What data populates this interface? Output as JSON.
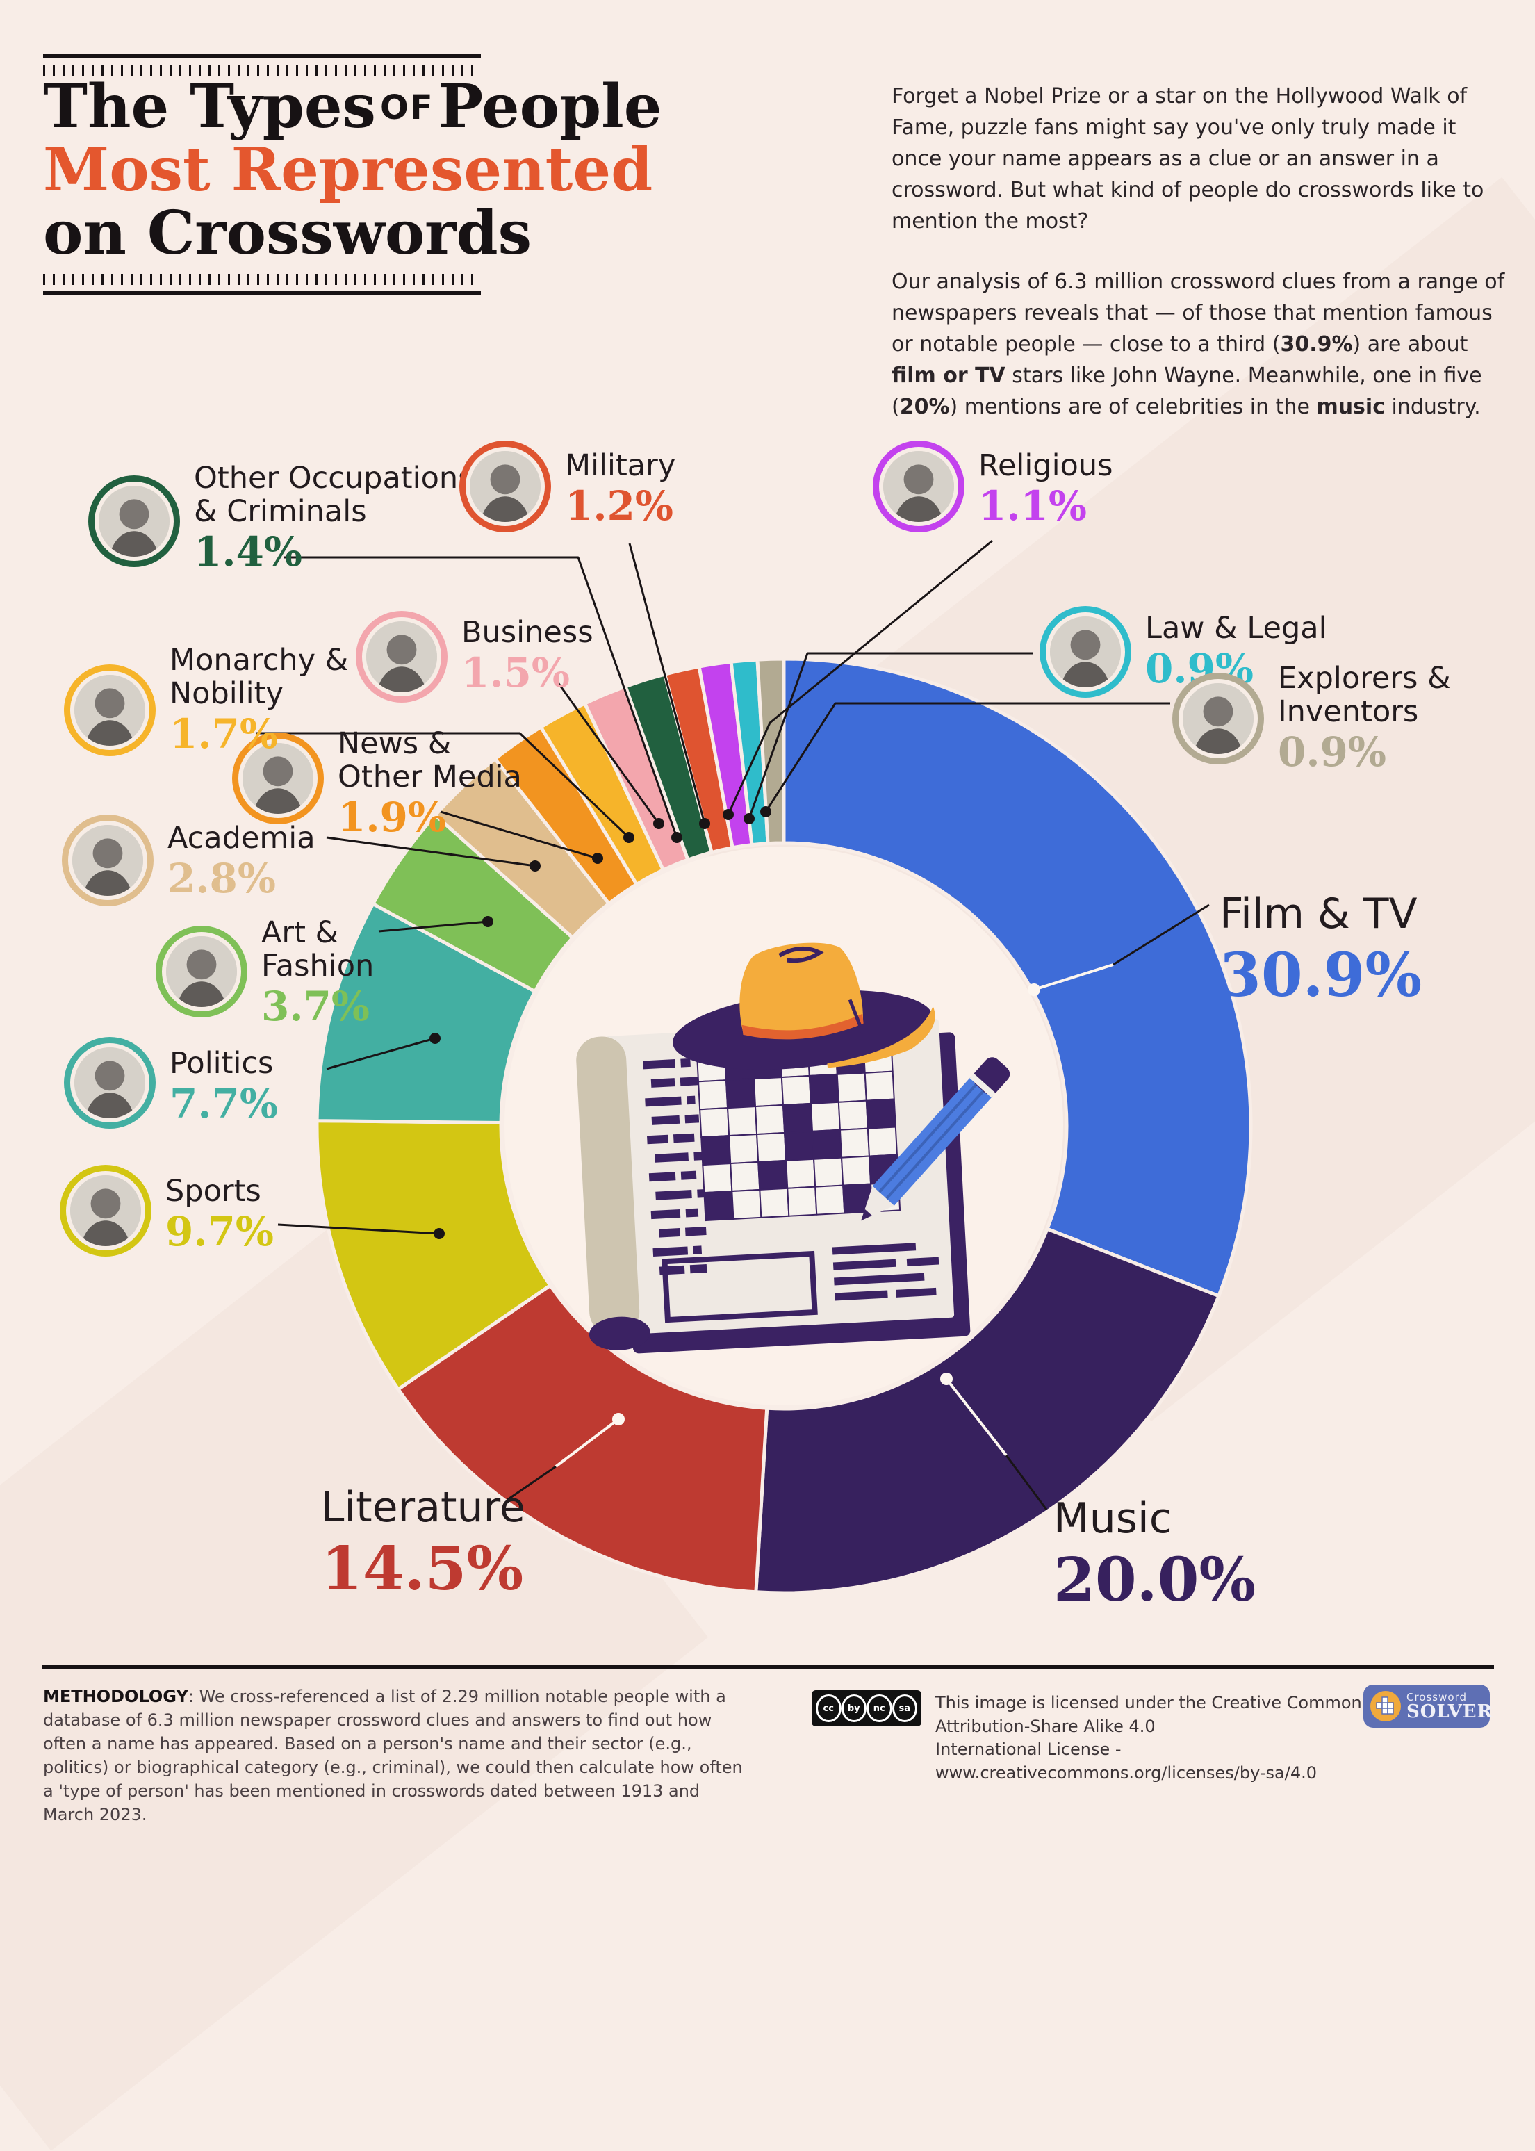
{
  "header": {
    "title": {
      "line1_pre": "The Types",
      "line1_mid": "of",
      "line1_post": "People",
      "line2": "Most Represented",
      "line3": "on Crosswords"
    },
    "intro_p1": "Forget a Nobel Prize or a star on the Hollywood Walk of Fame, puzzle fans might say you've only truly made it once your name appears as a clue or an answer in a crossword. But what kind of people do crosswords like to mention the most?",
    "intro_p2_segments": [
      {
        "text": "Our analysis of 6.3 million crossword clues from a range of newspapers reveals that — of those that mention famous or notable people — close to a third (",
        "bold": false
      },
      {
        "text": "30.9%",
        "bold": true
      },
      {
        "text": ") are about ",
        "bold": false
      },
      {
        "text": "film or TV",
        "bold": true
      },
      {
        "text": " stars like John Wayne. Meanwhile, one in five (",
        "bold": false
      },
      {
        "text": "20%",
        "bold": true
      },
      {
        "text": ") mentions are of celebrities in the ",
        "bold": false
      },
      {
        "text": "music",
        "bold": true
      },
      {
        "text": " industry.",
        "bold": false
      }
    ]
  },
  "chart_data": {
    "type": "pie",
    "title": "The Types of People Most Represented on Crosswords",
    "unit": "%",
    "legend_position": "around",
    "slices": [
      {
        "id": "film-tv",
        "label": "Film & TV",
        "label_lines": [
          "Film & TV"
        ],
        "value": 30.9,
        "pct_label": "30.9%",
        "color": "#3E6CD8"
      },
      {
        "id": "music",
        "label": "Music",
        "label_lines": [
          "Music"
        ],
        "value": 20.0,
        "pct_label": "20.0%",
        "color": "#37215E"
      },
      {
        "id": "literature",
        "label": "Literature",
        "label_lines": [
          "Literature"
        ],
        "value": 14.5,
        "pct_label": "14.5%",
        "color": "#BE3A31"
      },
      {
        "id": "sports",
        "label": "Sports",
        "label_lines": [
          "Sports"
        ],
        "value": 9.7,
        "pct_label": "9.7%",
        "color": "#D3C613"
      },
      {
        "id": "politics",
        "label": "Politics",
        "label_lines": [
          "Politics"
        ],
        "value": 7.7,
        "pct_label": "7.7%",
        "color": "#43AFA2"
      },
      {
        "id": "art-fashion",
        "label": "Art & Fashion",
        "label_lines": [
          "Art &",
          "Fashion"
        ],
        "value": 3.7,
        "pct_label": "3.7%",
        "color": "#7FC057"
      },
      {
        "id": "academia",
        "label": "Academia",
        "label_lines": [
          "Academia"
        ],
        "value": 2.8,
        "pct_label": "2.8%",
        "color": "#E0BE8E"
      },
      {
        "id": "news-media",
        "label": "News & Other Media",
        "label_lines": [
          "News &",
          "Other Media"
        ],
        "value": 1.9,
        "pct_label": "1.9%",
        "color": "#F29420"
      },
      {
        "id": "monarchy",
        "label": "Monarchy & Nobility",
        "label_lines": [
          "Monarchy &",
          "Nobility"
        ],
        "value": 1.7,
        "pct_label": "1.7%",
        "color": "#F6B42A"
      },
      {
        "id": "business",
        "label": "Business",
        "label_lines": [
          "Business"
        ],
        "value": 1.5,
        "pct_label": "1.5%",
        "color": "#F3A6AD"
      },
      {
        "id": "other-occupations",
        "label": "Other Occupations & Criminals",
        "label_lines": [
          "Other Occupations",
          "& Criminals"
        ],
        "value": 1.4,
        "pct_label": "1.4%",
        "color": "#21603F"
      },
      {
        "id": "military",
        "label": "Military",
        "label_lines": [
          "Military"
        ],
        "value": 1.2,
        "pct_label": "1.2%",
        "color": "#DF5430"
      },
      {
        "id": "religious",
        "label": "Religious",
        "label_lines": [
          "Religious"
        ],
        "value": 1.1,
        "pct_label": "1.1%",
        "color": "#C342EE"
      },
      {
        "id": "law-legal",
        "label": "Law & Legal",
        "label_lines": [
          "Law & Legal"
        ],
        "value": 0.9,
        "pct_label": "0.9%",
        "color": "#2FBCCB"
      },
      {
        "id": "explorers",
        "label": "Explorers & Inventors",
        "label_lines": [
          "Explorers &",
          "Inventors"
        ],
        "value": 0.9,
        "pct_label": "0.9%",
        "color": "#B2AA92"
      }
    ]
  },
  "footer": {
    "methodology_label": "METHODOLOGY",
    "methodology_text": ": We cross-referenced a list of 2.29 million notable people with a database of 6.3 million newspaper crossword clues and answers to find out how often a name has appeared. Based on a person's name and their sector (e.g., politics) or biographical category (e.g., criminal), we could then calculate how often a 'type of person' has been mentioned in crosswords dated between 1913 and March 2023.",
    "license_line1": "This image is licensed under the Creative Commons Attribution-Share Alike 4.0",
    "license_line2": "International License - www.creativecommons.org/licenses/by-sa/4.0",
    "cc_badges": [
      "cc",
      "by",
      "nc",
      "sa"
    ],
    "logo": {
      "line1": "Crossword",
      "line2": "SOLVER"
    }
  }
}
